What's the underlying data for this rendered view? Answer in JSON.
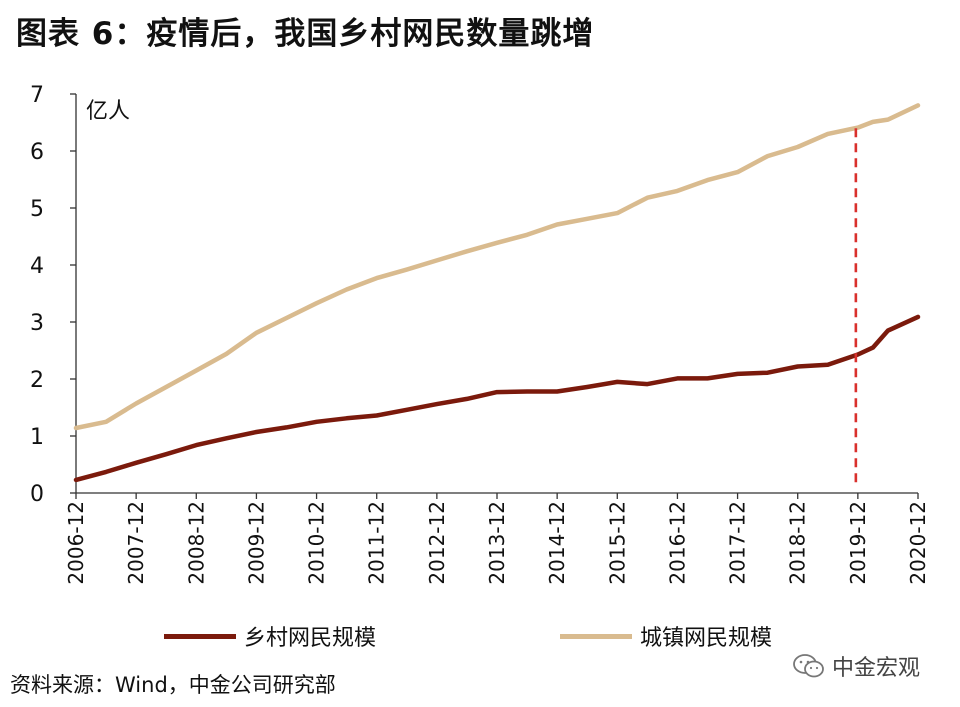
{
  "header": {
    "title": "图表 6：疫情后，我国乡村网民数量跳增"
  },
  "footer": {
    "source": "资料来源：Wind，中金公司研究部",
    "brand": "中金宏观"
  },
  "brand_icon": "wechat-icon",
  "chart_data": {
    "type": "line",
    "title": "图表 6：疫情后，我国乡村网民数量跳增",
    "unit_label": "亿人",
    "x": [
      "2006-12",
      "2007-06",
      "2007-12",
      "2008-06",
      "2008-12",
      "2009-06",
      "2009-12",
      "2010-06",
      "2010-12",
      "2011-06",
      "2011-12",
      "2012-06",
      "2012-12",
      "2013-06",
      "2013-12",
      "2014-06",
      "2014-12",
      "2015-06",
      "2015-12",
      "2016-06",
      "2016-12",
      "2017-06",
      "2017-12",
      "2018-06",
      "2018-12",
      "2019-06",
      "2019-12",
      "2020-03",
      "2020-06",
      "2020-12"
    ],
    "x_tick_labels": [
      "2006-12",
      "2007-12",
      "2008-12",
      "2009-12",
      "2010-12",
      "2011-12",
      "2012-12",
      "2013-12",
      "2014-12",
      "2015-12",
      "2016-12",
      "2017-12",
      "2018-12",
      "2019-12",
      "2020-12"
    ],
    "ylim": [
      0,
      7
    ],
    "y_ticks": [
      "0",
      "1",
      "2",
      "3",
      "4",
      "5",
      "6",
      "7"
    ],
    "vline_at": "2019-12",
    "vline_color": "#d9302c",
    "legend_position": "bottom",
    "grid": false,
    "series": [
      {
        "name": "乡村网民规模",
        "color": "#7b1a0c",
        "values": [
          0.23,
          0.37,
          0.53,
          0.68,
          0.84,
          0.96,
          1.07,
          1.15,
          1.25,
          1.31,
          1.36,
          1.46,
          1.56,
          1.65,
          1.77,
          1.78,
          1.78,
          1.86,
          1.95,
          1.91,
          2.01,
          2.01,
          2.09,
          2.11,
          2.22,
          2.25,
          2.43,
          2.55,
          2.85,
          3.09
        ]
      },
      {
        "name": "城镇网民规模",
        "color": "#d9bb8f",
        "values": [
          1.14,
          1.25,
          1.57,
          1.86,
          2.15,
          2.44,
          2.81,
          3.07,
          3.33,
          3.57,
          3.77,
          3.92,
          4.08,
          4.24,
          4.39,
          4.53,
          4.71,
          4.81,
          4.91,
          5.18,
          5.3,
          5.49,
          5.63,
          5.91,
          6.07,
          6.3,
          6.41,
          6.51,
          6.55,
          6.8
        ]
      }
    ]
  }
}
